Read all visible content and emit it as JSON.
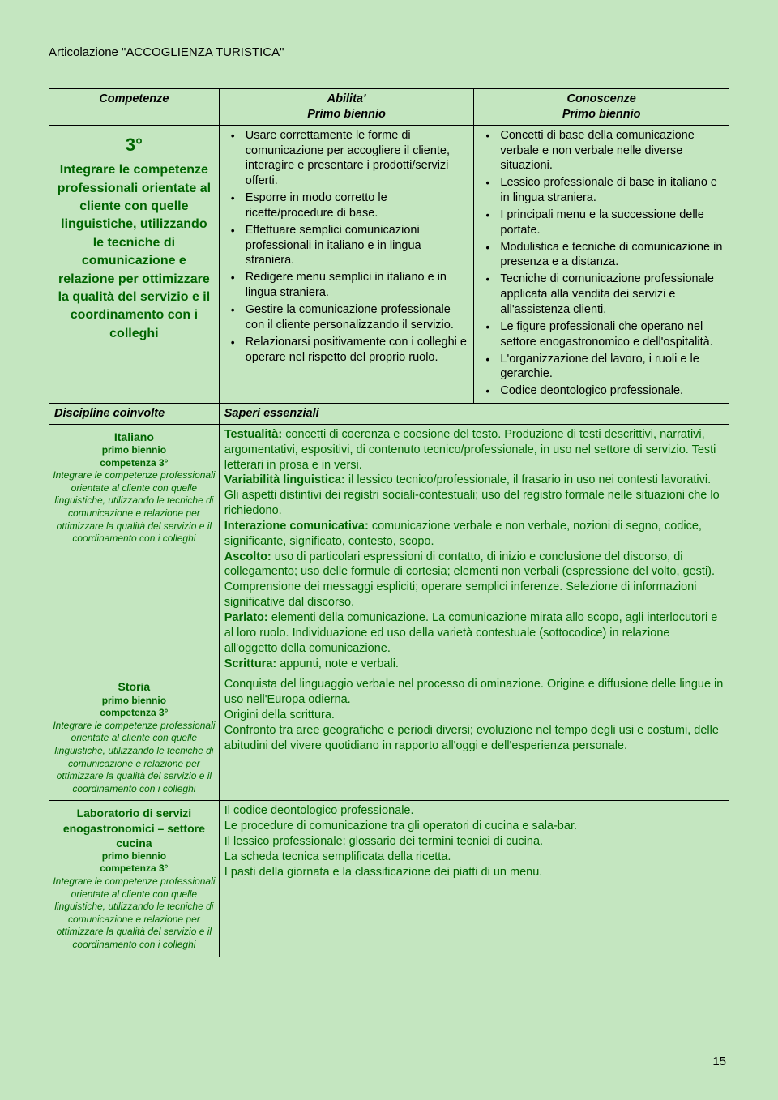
{
  "articulation": "Articolazione \"ACCOGLIENZA TURISTICA\"",
  "headers": {
    "competenze": "Competenze",
    "abilita_title": "Abilita'",
    "abilita_sub": "Primo biennio",
    "conoscenze_title": "Conoscenze",
    "conoscenze_sub": "Primo biennio"
  },
  "competenza": {
    "num": "3°",
    "desc": "Integrare le competenze professionali orientate al cliente con quelle linguistiche, utilizzando le tecniche di comunicazione e relazione per ottimizzare la qualità del servizio e il coordinamento con i colleghi"
  },
  "abilita": [
    "Usare correttamente le forme di comunicazione per accogliere il cliente, interagire e presentare i prodotti/servizi offerti.",
    "Esporre in modo corretto le ricette/procedure di base.",
    "Effettuare semplici comunicazioni professionali in italiano e in lingua straniera.",
    "Redigere menu semplici in italiano e in lingua straniera.",
    "Gestire la comunicazione professionale con il cliente personalizzando il servizio.",
    "Relazionarsi positivamente con i colleghi e operare nel rispetto del proprio ruolo."
  ],
  "conoscenze": [
    "Concetti di base della comunicazione verbale e non verbale nelle diverse situazioni.",
    "Lessico professionale di base in italiano e  in lingua straniera.",
    "I principali menu e la successione delle portate.",
    "Modulistica e tecniche di comunicazione in presenza e a distanza.",
    "Tecniche di comunicazione professionale applicata alla vendita dei servizi e all'assistenza clienti.",
    "Le figure professionali che operano nel settore enogastronomico e dell'ospitalità.",
    "L'organizzazione del lavoro, i ruoli e le gerarchie.",
    "Codice deontologico  professionale."
  ],
  "section2": {
    "discipline_label": "Discipline coinvolte",
    "saperi_label": "Saperi essenziali"
  },
  "competenza_sub": "Integrare le competenze professionali orientate al cliente con quelle linguistiche, utilizzando le tecniche di comunicazione e relazione per ottimizzare la qualità del servizio e il coordinamento con i colleghi",
  "rows": [
    {
      "title": "Italiano",
      "sub1": "primo biennio",
      "sub2": "competenza 3°",
      "body": "<b>Testualità:</b> concetti di coerenza e coesione del testo. Produzione di testi descrittivi, narrativi, argomentativi, espositivi, di contenuto tecnico/professionale, in uso nel settore di servizio. Testi letterari in prosa e in versi.<br><b>Variabilità linguistica:</b> il lessico tecnico/professionale, il frasario in uso nei contesti lavorativi. Gli aspetti distintivi dei registri sociali-contestuali; uso del registro formale nelle situazioni che lo richiedono.<br><b>Interazione comunicativa:</b> comunicazione verbale e non verbale, nozioni di segno, codice, significante, significato, contesto, scopo.<br><b>Ascolto:</b> uso di particolari espressioni di contatto, di inizio e conclusione del discorso, di collegamento; uso delle formule di cortesia; elementi non verbali (espressione del volto, gesti). Comprensione dei messaggi espliciti; operare semplici inferenze. Selezione di informazioni significative dal discorso.<br><b>Parlato:</b> elementi della comunicazione. La comunicazione mirata allo scopo, agli interlocutori e al loro ruolo. Individuazione ed uso della varietà contestuale (sottocodice) in relazione all'oggetto della comunicazione.<br><b>Scrittura:</b> appunti, note e verbali."
    },
    {
      "title": "Storia",
      "sub1": "primo biennio",
      "sub2": "competenza 3°",
      "body": "Conquista del linguaggio verbale nel processo di ominazione. Origine e diffusione delle lingue in uso nell'Europa odierna.<br>Origini della scrittura.<br>Confronto tra aree geografiche e periodi diversi; evoluzione nel tempo degli usi e costumi, delle abitudini del vivere quotidiano in rapporto all'oggi e dell'esperienza personale."
    },
    {
      "title": "Laboratorio di servizi enogastronomici – settore cucina",
      "sub1": "primo biennio",
      "sub2": "competenza 3°",
      "body": "Il codice deontologico professionale.<br>Le procedure di comunicazione tra gli operatori di cucina e sala-bar.<br>Il lessico professionale: glossario dei termini tecnici di cucina.<br>La scheda tecnica semplificata della ricetta.<br>I pasti della giornata e la classificazione dei piatti di un menu."
    }
  ],
  "page_num": "15"
}
